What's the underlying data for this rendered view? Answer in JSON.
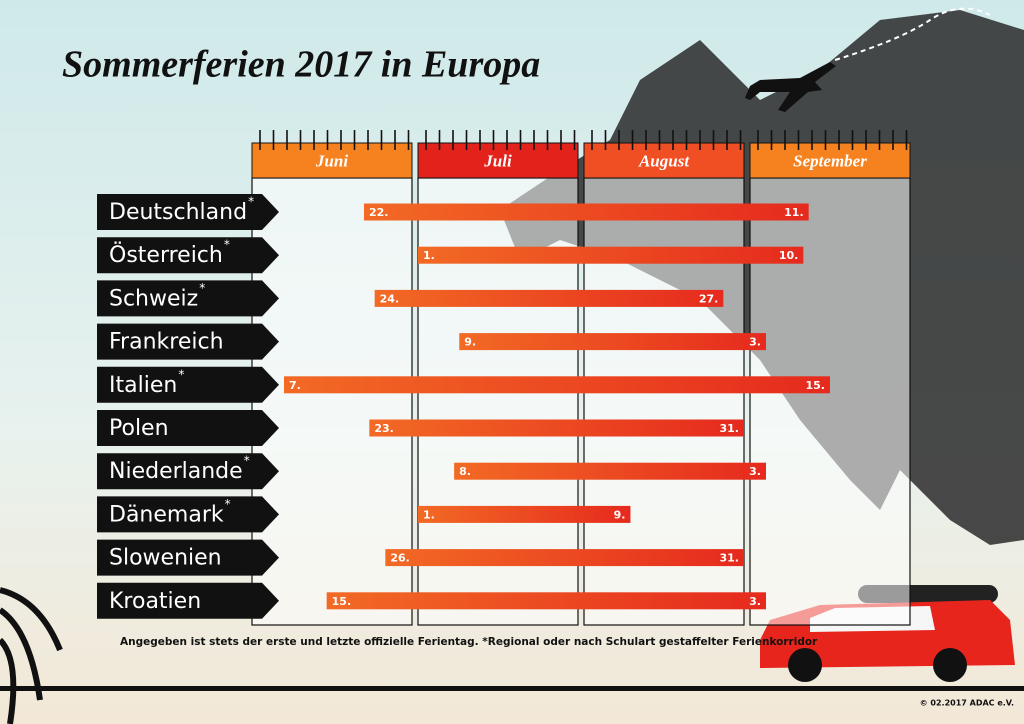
{
  "chart_data": {
    "type": "gantt",
    "title": "Sommerferien 2017 in Europa",
    "months": [
      {
        "value": "2017-06",
        "label": "Juni"
      },
      {
        "value": "2017-07",
        "label": "Juli"
      },
      {
        "value": "2017-08",
        "label": "August"
      },
      {
        "value": "2017-09",
        "label": "September"
      }
    ],
    "month_colors": [
      "#f6821f",
      "#e3231b",
      "#f04e23",
      "#f6821f"
    ],
    "categories": [
      "Deutschland",
      "Österreich",
      "Schweiz",
      "Frankreich",
      "Italien",
      "Polen",
      "Niederlande",
      "Dänemark",
      "Slowenien",
      "Kroatien"
    ],
    "category_marks": [
      "*",
      "*",
      "*",
      null,
      "*",
      null,
      "*",
      "*",
      null,
      null
    ],
    "starts": [
      "2017-06-22",
      "2017-07-01",
      "2017-06-24",
      "2017-07-09",
      "2017-06-07",
      "2017-06-23",
      "2017-07-08",
      "2017-07-01",
      "2017-06-26",
      "2017-06-15"
    ],
    "start_labels": [
      "22.",
      "1.",
      "24.",
      "9.",
      "7.",
      "23.",
      "8.",
      "1.",
      "26.",
      "15."
    ],
    "ends": [
      "2017-09-11",
      "2017-09-10",
      "2017-08-27",
      "2017-09-03",
      "2017-09-15",
      "2017-08-31",
      "2017-09-03",
      "2017-08-09",
      "2017-08-31",
      "2017-09-03"
    ],
    "end_labels": [
      "11.",
      "10.",
      "27.",
      "3.",
      "15.",
      "31.",
      "3.",
      "9.",
      "31.",
      "3."
    ],
    "footnote": "Angegeben ist stets der erste und letzte offizielle Ferientag. *Regional oder nach Schulart gestaffelter Ferienkorridor",
    "copyright": "© 02.2017 ADAC e.V."
  }
}
